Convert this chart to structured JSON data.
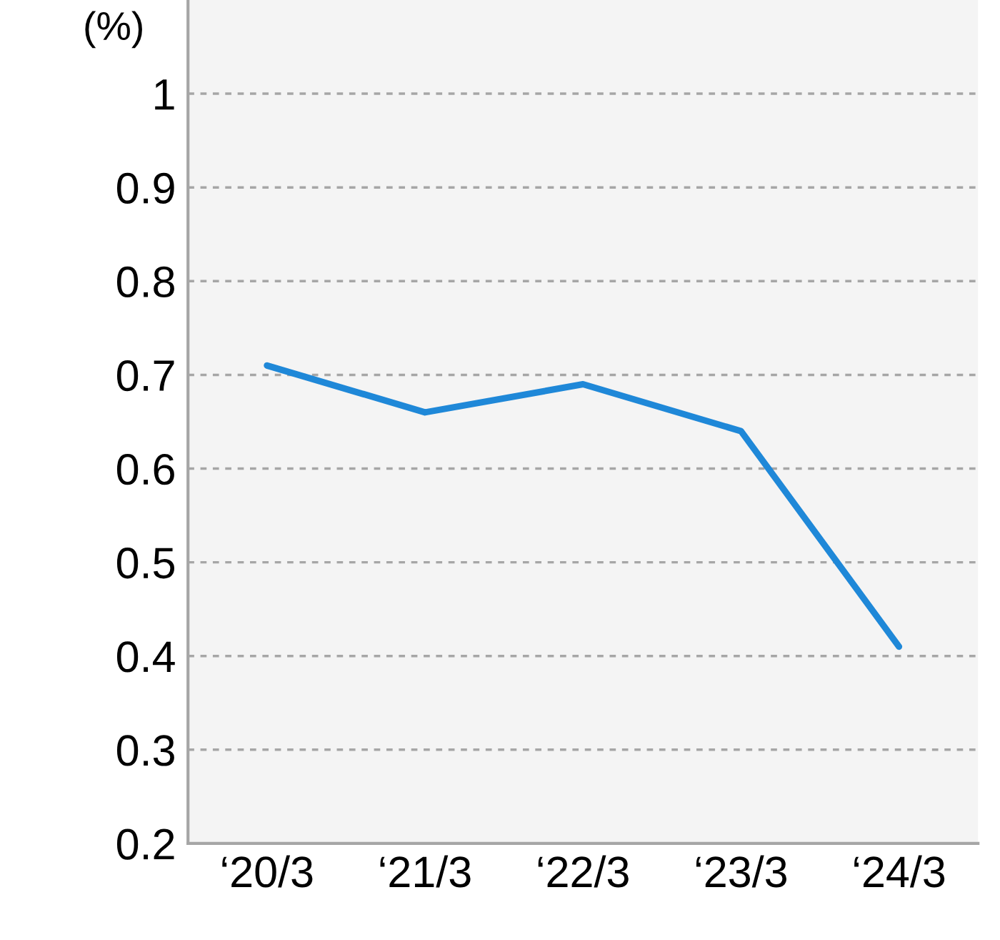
{
  "chart_data": {
    "type": "line",
    "ylabel": "(%)",
    "categories": [
      "‘20/3",
      "‘21/3",
      "‘22/3",
      "‘23/3",
      "‘24/3"
    ],
    "series": [
      {
        "color": "#1f88d8",
        "values": [
          0.71,
          0.66,
          0.69,
          0.64,
          0.41
        ]
      }
    ],
    "ylim": [
      0.2,
      1.1
    ],
    "yticks": [
      {
        "value": 0.2,
        "label": "0.2"
      },
      {
        "value": 0.3,
        "label": "0.3"
      },
      {
        "value": 0.4,
        "label": "0.4"
      },
      {
        "value": 0.5,
        "label": "0.5"
      },
      {
        "value": 0.6,
        "label": "0.6"
      },
      {
        "value": 0.7,
        "label": "0.7"
      },
      {
        "value": 0.8,
        "label": "0.8"
      },
      {
        "value": 0.9,
        "label": "0.9"
      },
      {
        "value": 1,
        "label": "1"
      }
    ],
    "grid": "y",
    "line_style": "solid",
    "marker": "none"
  }
}
